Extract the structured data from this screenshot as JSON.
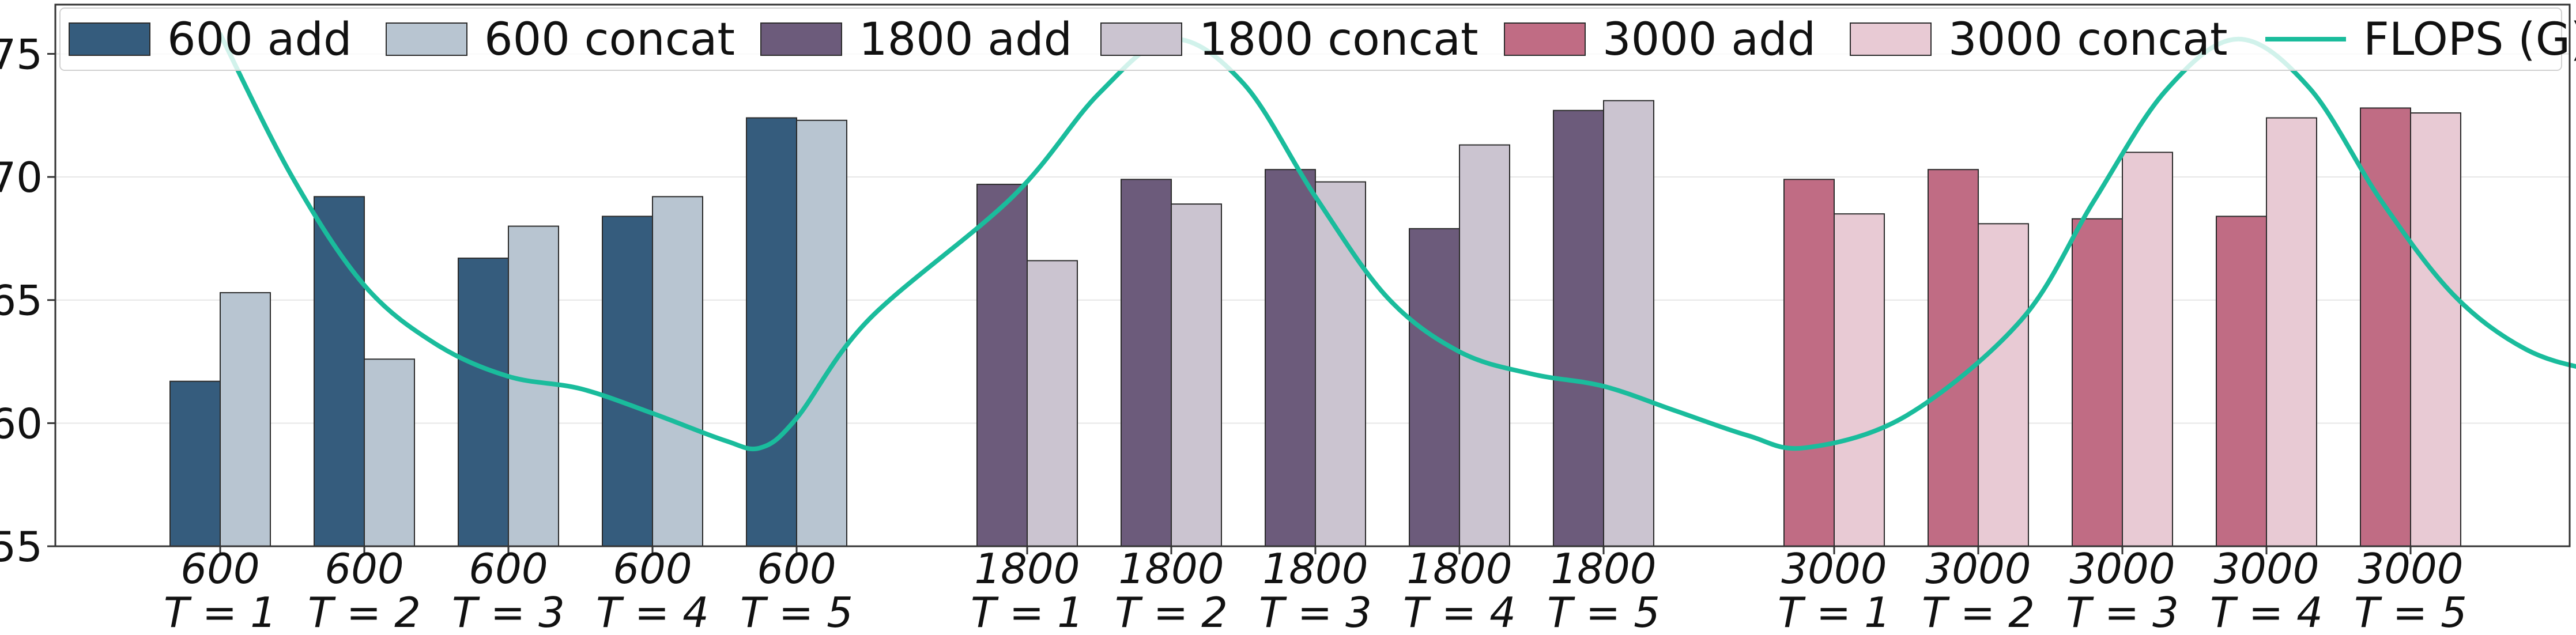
{
  "chart_data": {
    "type": "bar",
    "title": "",
    "xlabel": "",
    "ylabel": "",
    "ylim": [
      55,
      77
    ],
    "yticks": [
      55,
      60,
      65,
      70,
      75
    ],
    "grid": "y",
    "legend_position": "top",
    "groups": [
      {
        "name": "600",
        "add_color": "#355c7d",
        "concat_color": "#b8c5d1",
        "categories": [
          {
            "line1": "600",
            "line2": "T = 1"
          },
          {
            "line1": "600",
            "line2": "T = 2"
          },
          {
            "line1": "600",
            "line2": "T = 3"
          },
          {
            "line1": "600",
            "line2": "T = 4"
          },
          {
            "line1": "600",
            "line2": "T = 5"
          }
        ],
        "add_values": [
          61.7,
          69.2,
          66.7,
          68.4,
          72.4
        ],
        "concat_values": [
          65.3,
          62.6,
          68.0,
          69.2,
          72.3
        ]
      },
      {
        "name": "1800",
        "add_color": "#6c5b7b",
        "concat_color": "#cbc4d0",
        "categories": [
          {
            "line1": "1800",
            "line2": "T = 1"
          },
          {
            "line1": "1800",
            "line2": "T = 2"
          },
          {
            "line1": "1800",
            "line2": "T = 3"
          },
          {
            "line1": "1800",
            "line2": "T = 4"
          },
          {
            "line1": "1800",
            "line2": "T = 5"
          }
        ],
        "add_values": [
          69.7,
          69.9,
          70.3,
          67.9,
          72.7
        ],
        "concat_values": [
          66.6,
          68.9,
          69.8,
          71.3,
          73.1
        ]
      },
      {
        "name": "3000",
        "add_color": "#c06c84",
        "concat_color": "#e8cad4",
        "categories": [
          {
            "line1": "3000",
            "line2": "T = 1"
          },
          {
            "line1": "3000",
            "line2": "T = 2"
          },
          {
            "line1": "3000",
            "line2": "T = 3"
          },
          {
            "line1": "3000",
            "line2": "T = 4"
          },
          {
            "line1": "3000",
            "line2": "T = 5"
          }
        ],
        "add_values": [
          69.9,
          70.3,
          68.3,
          68.4,
          72.8
        ],
        "concat_values": [
          68.5,
          68.1,
          71.0,
          72.4,
          72.6
        ]
      }
    ],
    "flops_line": {
      "name": "FLOPS (G)",
      "color": "#1abc9c",
      "points": [
        [
          0.0,
          75.8
        ],
        [
          0.5,
          70.0
        ],
        [
          1.0,
          65.6
        ],
        [
          1.5,
          63.2
        ],
        [
          2.0,
          61.9
        ],
        [
          2.5,
          61.4
        ],
        [
          3.0,
          60.4
        ],
        [
          3.5,
          59.3
        ],
        [
          3.75,
          59.0
        ],
        [
          4.0,
          60.2
        ],
        [
          4.5,
          64.2
        ],
        [
          5.0,
          69.2
        ],
        [
          5.5,
          73.4
        ],
        [
          6.0,
          75.6
        ],
        [
          6.5,
          73.8
        ],
        [
          7.0,
          69.2
        ],
        [
          7.5,
          65.1
        ],
        [
          8.0,
          62.9
        ],
        [
          8.5,
          62.0
        ],
        [
          9.0,
          61.5
        ],
        [
          9.5,
          60.5
        ],
        [
          10.0,
          59.5
        ],
        [
          10.4,
          59.0
        ],
        [
          10.8,
          60.3
        ],
        [
          11.3,
          64.2
        ],
        [
          11.8,
          69.0
        ],
        [
          12.3,
          73.5
        ],
        [
          12.8,
          75.6
        ],
        [
          13.3,
          73.6
        ],
        [
          13.8,
          69.0
        ],
        [
          14.3,
          65.2
        ],
        [
          14.8,
          63.0
        ],
        [
          15.3,
          62.1
        ],
        [
          15.8,
          61.6
        ],
        [
          16.3,
          60.5
        ],
        [
          16.8,
          59.8
        ],
        [
          17.3,
          59.7
        ],
        [
          17.7,
          60.1
        ]
      ]
    },
    "legend": [
      {
        "label": "600 add",
        "type": "bar",
        "color": "#355c7d"
      },
      {
        "label": "600 concat",
        "type": "bar",
        "color": "#b8c5d1"
      },
      {
        "label": "1800 add",
        "type": "bar",
        "color": "#6c5b7b"
      },
      {
        "label": "1800 concat",
        "type": "bar",
        "color": "#cbc4d0"
      },
      {
        "label": "3000 add",
        "type": "bar",
        "color": "#c06c84"
      },
      {
        "label": "3000 concat",
        "type": "bar",
        "color": "#e8cad4"
      },
      {
        "label": "FLOPS (G)",
        "type": "line",
        "color": "#1abc9c"
      }
    ]
  }
}
